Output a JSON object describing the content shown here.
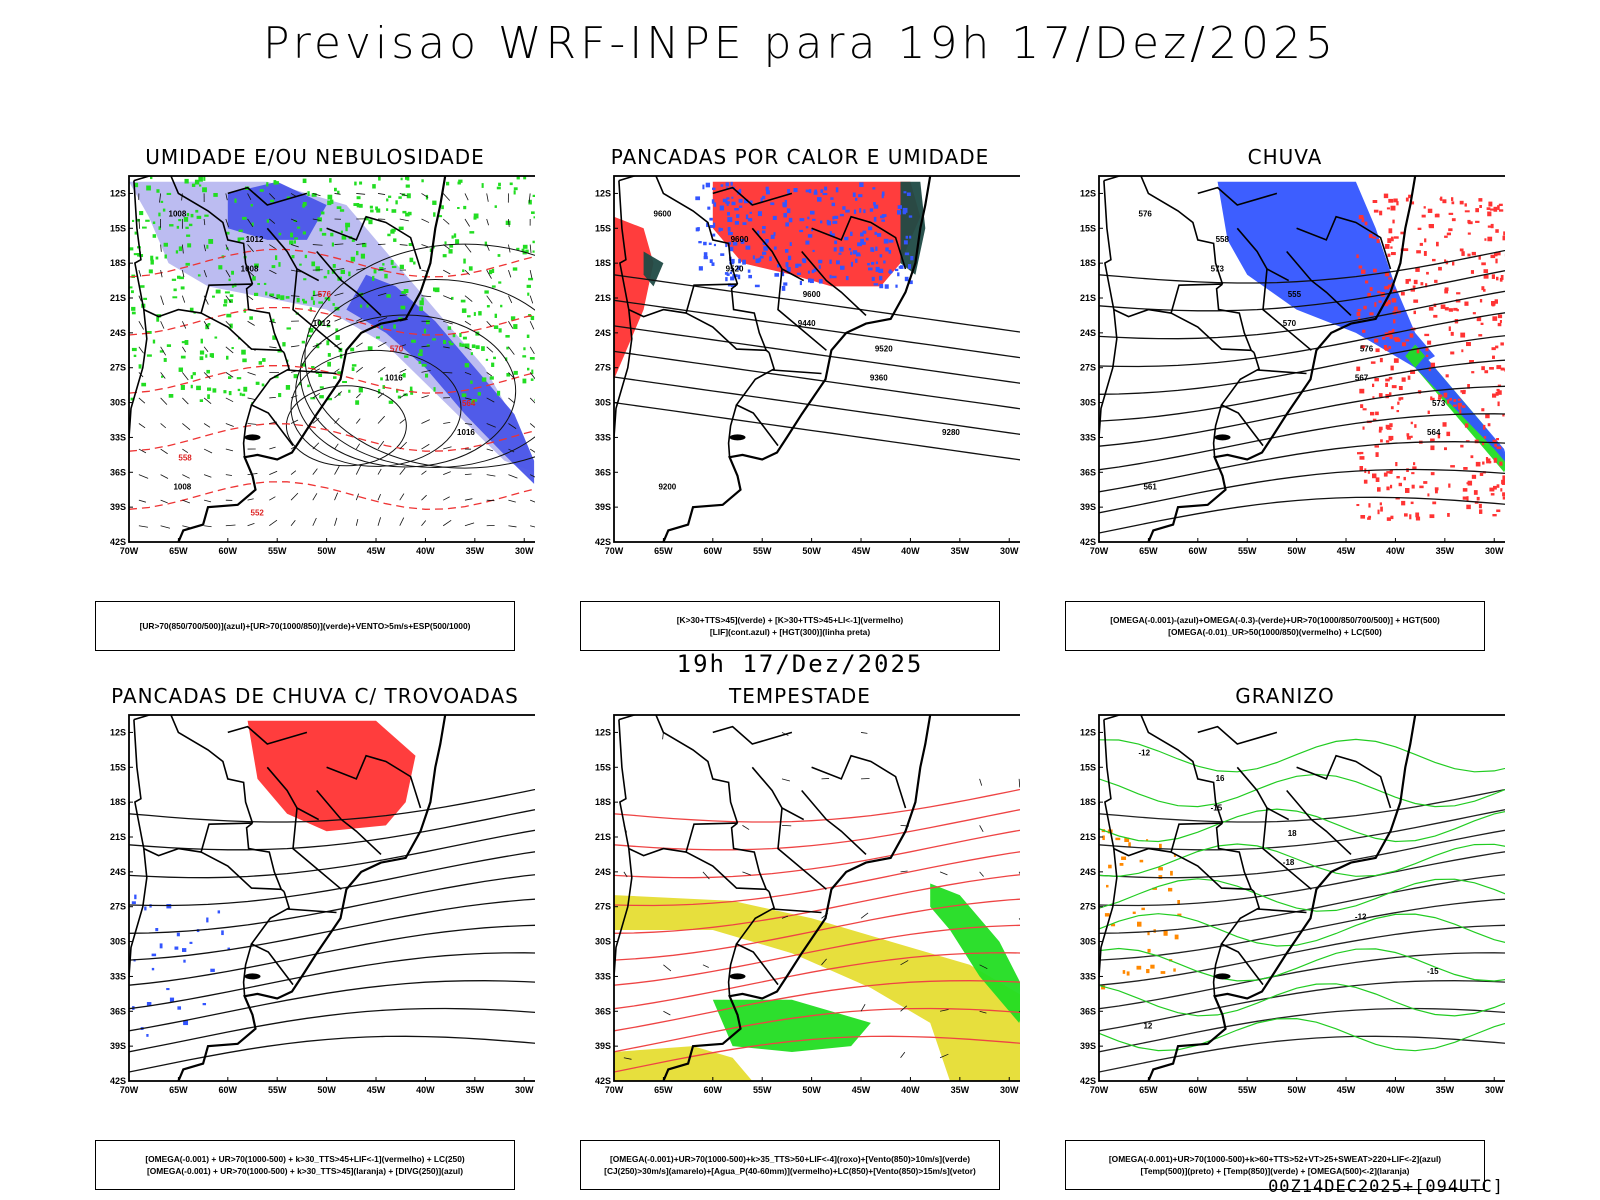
{
  "header": {
    "title": "Previsao WRF-INPE  para 19h 17/Dez/2025"
  },
  "middle_label": "19h 17/Dez/2025",
  "footer": "00Z14DEC2025+[094UTC]",
  "axes": {
    "lat_ticks": [
      "12S",
      "15S",
      "18S",
      "21S",
      "24S",
      "27S",
      "30S",
      "33S",
      "36S",
      "39S",
      "42S"
    ],
    "lon_ticks": [
      "70W",
      "65W",
      "60W",
      "55W",
      "50W",
      "45W",
      "40W",
      "35W",
      "30W"
    ]
  },
  "colors": {
    "blue": "#3355ff",
    "light_blue": "#b3b3f0",
    "green": "#22dd22",
    "red": "#ff3333",
    "yellow": "#e6dd33",
    "orange": "#ff8800",
    "dark_teal": "#1f4a44",
    "purple": "#7755ff"
  },
  "panels": [
    {
      "id": "umidade",
      "title": "UMIDADE E/OU NEBULOSIDADE",
      "legend": [
        "[UR>70(850/700/500)](azul)+[UR>70(1000/850)](verde)+VENTO>5m/s+ESP(500/1000)"
      ],
      "contour_labels": [
        "1008",
        "1008",
        "1012",
        "1016",
        "1016",
        "1008",
        "1012",
        "576",
        "570",
        "564",
        "558",
        "552"
      ]
    },
    {
      "id": "pancadas_calor",
      "title": "PANCADAS POR CALOR E UMIDADE",
      "legend": [
        "[K>30+TTS>45](verde) + [K>30+TTS>45+LI<-1](vermelho)",
        "[LIF](cont.azul) + [HGT(300)](linha preta)"
      ],
      "contour_labels": [
        "9600",
        "9520",
        "9440",
        "9360",
        "9280",
        "9200",
        "9600",
        "9600",
        "9520"
      ]
    },
    {
      "id": "chuva",
      "title": "CHUVA",
      "legend": [
        "[OMEGA(-0.001)-(azul)+OMEGA(-0.3)-(verde)+UR>70(1000/850/700/500)] + HGT(500)",
        "[OMEGA(-0.01)_UR>50(1000/850)(vermelho) + LC(500)"
      ],
      "contour_labels": [
        "576",
        "573",
        "570",
        "567",
        "564",
        "561",
        "558",
        "555",
        "576",
        "573"
      ]
    },
    {
      "id": "trovoadas",
      "title": "PANCADAS DE CHUVA C/ TROVOADAS",
      "legend": [
        "[OMEGA(-0.001) + UR>70(1000-500) + k>30_TTS>45+LIF<-1](vermelho) + LC(250)",
        "[OMEGA(-0.001) + UR>70(1000-500) + k>30_TTS>45](laranja) + [DIVG(250)](azul)"
      ],
      "contour_labels": []
    },
    {
      "id": "tempestade",
      "title": "TEMPESTADE",
      "legend": [
        "[OMEGA(-0.001)+UR>70(1000-500)+k>35_TTS>50+LIF<-4](roxo)+[Vento(850)>10m/s](verde)",
        "[CJ(250)>30m/s](amarelo)+[Agua_P(40-60mm)](vermelho)+LC(850)+[Vento(850)>15m/s](vetor)"
      ],
      "contour_labels": []
    },
    {
      "id": "granizo",
      "title": "GRANIZO",
      "legend": [
        "[OMEGA(-0.001)+UR>70(1000-500)+k>60+TTS>52+VT>25+SWEAT>220+LIF<-2](azul)",
        "[Temp(500)](preto) + [Temp(850)](verde) + [OMEGA(500)<-2](laranja)"
      ],
      "contour_labels": [
        "-12",
        "-15",
        "-18",
        "-12",
        "-15",
        "12",
        "16",
        "18"
      ]
    }
  ]
}
